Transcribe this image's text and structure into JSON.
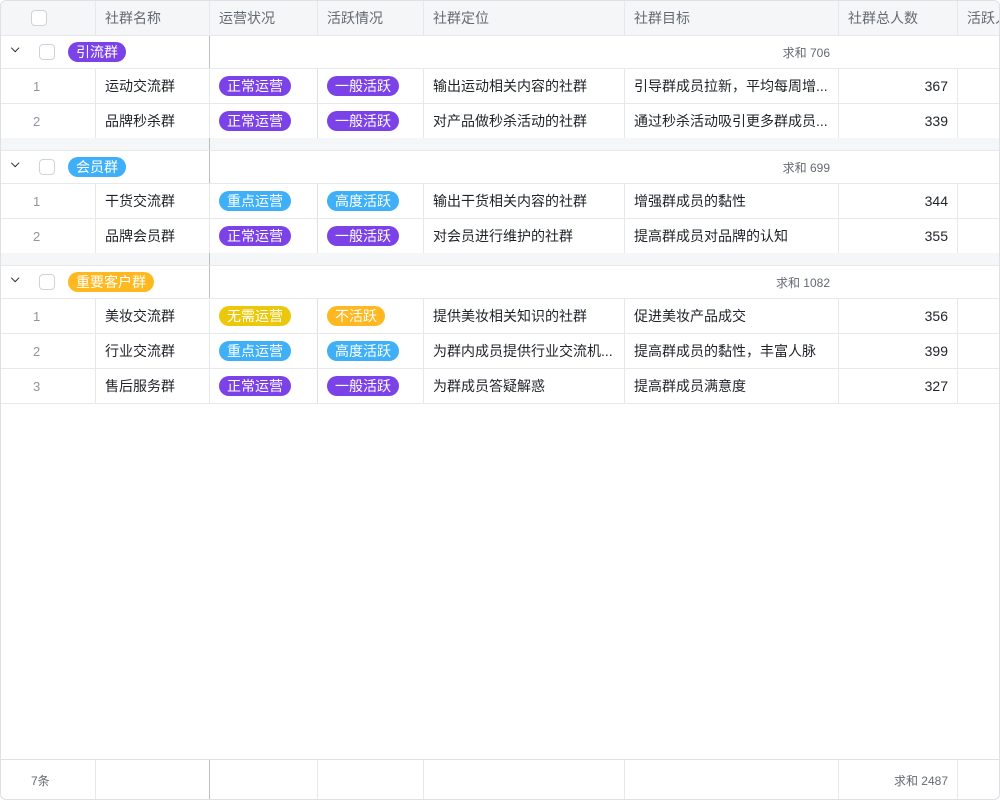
{
  "columns": [
    "",
    "社群名称",
    "运营状况",
    "活跃情况",
    "社群定位",
    "社群目标",
    "社群总人数",
    "活跃人"
  ],
  "colors": {
    "purple": "#7b42e8",
    "blue": "#3fb0f7",
    "yellow": "#ecc80c",
    "orange": "#ffb81f"
  },
  "groups": [
    {
      "name": "引流群",
      "color": "purple",
      "sum": "求和 706",
      "rows": [
        {
          "index": "1",
          "name": "运动交流群",
          "status": "正常运营",
          "status_color": "purple",
          "activity": "一般活跃",
          "activity_color": "purple",
          "position": "输出运动相关内容的社群",
          "goal": "引导群成员拉新，平均每周增...",
          "count": "367"
        },
        {
          "index": "2",
          "name": "品牌秒杀群",
          "status": "正常运营",
          "status_color": "purple",
          "activity": "一般活跃",
          "activity_color": "purple",
          "position": "对产品做秒杀活动的社群",
          "goal": "通过秒杀活动吸引更多群成员...",
          "count": "339"
        }
      ]
    },
    {
      "name": "会员群",
      "color": "blue",
      "sum": "求和 699",
      "rows": [
        {
          "index": "1",
          "name": "干货交流群",
          "status": "重点运营",
          "status_color": "blue",
          "activity": "高度活跃",
          "activity_color": "blue",
          "position": "输出干货相关内容的社群",
          "goal": "增强群成员的黏性",
          "count": "344"
        },
        {
          "index": "2",
          "name": "品牌会员群",
          "status": "正常运营",
          "status_color": "purple",
          "activity": "一般活跃",
          "activity_color": "purple",
          "position": "对会员进行维护的社群",
          "goal": "提高群成员对品牌的认知",
          "count": "355"
        }
      ]
    },
    {
      "name": "重要客户群",
      "color": "orange",
      "sum": "求和 1082",
      "rows": [
        {
          "index": "1",
          "name": "美妆交流群",
          "status": "无需运营",
          "status_color": "yellow",
          "activity": "不活跃",
          "activity_color": "orange",
          "position": "提供美妆相关知识的社群",
          "goal": "促进美妆产品成交",
          "count": "356"
        },
        {
          "index": "2",
          "name": "行业交流群",
          "status": "重点运营",
          "status_color": "blue",
          "activity": "高度活跃",
          "activity_color": "blue",
          "position": "为群内成员提供行业交流机...",
          "goal": "提高群成员的黏性，丰富人脉",
          "count": "399"
        },
        {
          "index": "3",
          "name": "售后服务群",
          "status": "正常运营",
          "status_color": "purple",
          "activity": "一般活跃",
          "activity_color": "purple",
          "position": "为群成员答疑解惑",
          "goal": "提高群成员满意度",
          "count": "327"
        }
      ]
    }
  ],
  "footer": {
    "count": "7条",
    "sum": "求和 2487"
  }
}
